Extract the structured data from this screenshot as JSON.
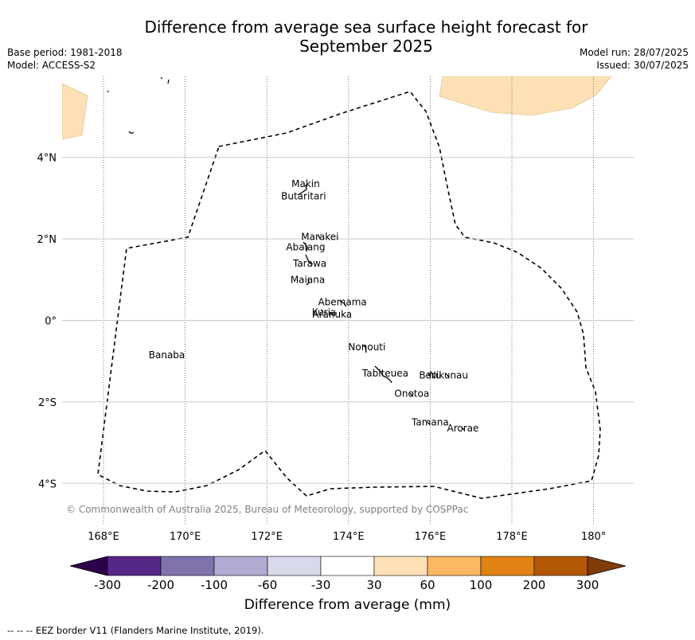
{
  "header": {
    "title_line1": "Difference from average sea surface height forecast for",
    "title_line2": "September 2025",
    "base_period": "Base period: 1981-2018",
    "model": "Model: ACCESS-S2",
    "model_run": "Model run: 28/07/2025",
    "issued": "Issued: 30/07/2025"
  },
  "map": {
    "lon_ticks": [
      "168°E",
      "170°E",
      "172°E",
      "174°E",
      "176°E",
      "178°E",
      "180°"
    ],
    "lat_ticks": [
      "4°N",
      "2°N",
      "0°",
      "2°S",
      "4°S"
    ],
    "copyright": "© Commonwealth of Australia 2025, Bureau of Meteorology, supported by COSPPac",
    "land_color": "#fde0b6",
    "islands": [
      {
        "name": "Makin",
        "lon": 172.95,
        "lat": 3.35
      },
      {
        "name": "Butaritari",
        "lon": 172.9,
        "lat": 3.05
      },
      {
        "name": "Marakei",
        "lon": 173.3,
        "lat": 2.05
      },
      {
        "name": "Abaiang",
        "lon": 172.95,
        "lat": 1.8
      },
      {
        "name": "Tarawa",
        "lon": 173.05,
        "lat": 1.4
      },
      {
        "name": "Maiana",
        "lon": 173.0,
        "lat": 1.0
      },
      {
        "name": "Abemama",
        "lon": 173.85,
        "lat": 0.45
      },
      {
        "name": "Kuria",
        "lon": 173.4,
        "lat": 0.2
      },
      {
        "name": "Aranuka",
        "lon": 173.6,
        "lat": 0.15
      },
      {
        "name": "Nonouti",
        "lon": 174.45,
        "lat": -0.65
      },
      {
        "name": "Banaba",
        "lon": 169.55,
        "lat": -0.85
      },
      {
        "name": "Tabiteuea",
        "lon": 174.9,
        "lat": -1.3
      },
      {
        "name": "Beru",
        "lon": 176.0,
        "lat": -1.35
      },
      {
        "name": "Nikunau",
        "lon": 176.45,
        "lat": -1.35
      },
      {
        "name": "Onotoa",
        "lon": 175.55,
        "lat": -1.8
      },
      {
        "name": "Tamana",
        "lon": 176.0,
        "lat": -2.5
      },
      {
        "name": "Arorae",
        "lon": 176.8,
        "lat": -2.65
      }
    ]
  },
  "colorbar": {
    "label": "Difference from average (mm)",
    "ticks": [
      "-300",
      "-200",
      "-100",
      "-60",
      "-30",
      "30",
      "60",
      "100",
      "200",
      "300"
    ],
    "under_color": "#2d004b",
    "over_color": "#7f3b08",
    "colors": [
      "#542788",
      "#8073ac",
      "#b2abd2",
      "#d8daeb",
      "#ffffff",
      "#fee0b6",
      "#fdb863",
      "#e08214",
      "#b35806"
    ]
  },
  "footer": {
    "eez_note": "--  --  -- EEZ border V11 (Flanders Marine Institute, 2019)."
  }
}
